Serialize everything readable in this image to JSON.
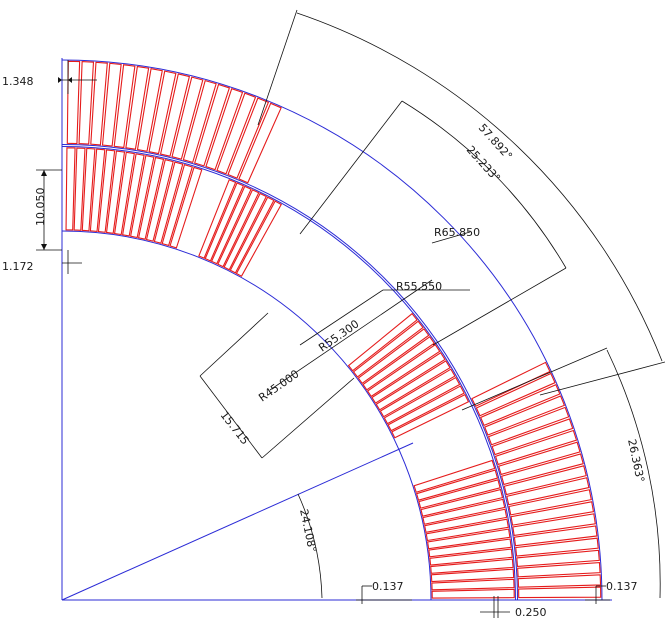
{
  "colors": {
    "arc": "#2b2bd6",
    "conductor": "#e51c1c",
    "dimension": "#111111"
  },
  "radii": {
    "r_outer_max": "R65.850",
    "r_outer_min": "R55.550",
    "r_inner_max": "R55.300",
    "r_inner_min": "R45.000"
  },
  "angles": {
    "outer_block_angle": "57.892°",
    "inner_block_angle": "25.233°",
    "outer_last_angle": "26.363°",
    "bottom_angle": "24.108°"
  },
  "dimensions": {
    "top_gap": "1.348",
    "layer_width": "10.050",
    "layer_gap": "1.172",
    "midplane_inner": "0.137",
    "midplane_outer": "0.137",
    "interlayer": "0.250",
    "chord": "15.715"
  }
}
